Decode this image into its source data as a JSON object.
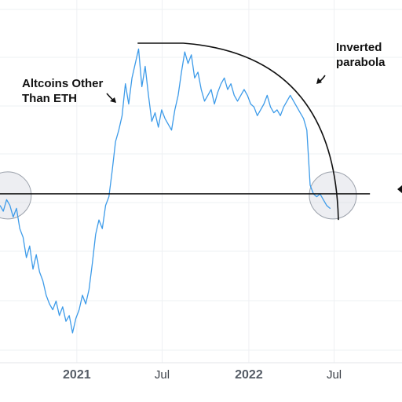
{
  "chart_data": {
    "type": "line",
    "title": "",
    "xlabel": "",
    "ylabel": "",
    "x_ticks": [
      {
        "label": "2021",
        "x": "2021-01-01",
        "style": "year"
      },
      {
        "label": "Jul",
        "x": "2021-07-01",
        "style": "month"
      },
      {
        "label": "2022",
        "x": "2022-01-01",
        "style": "year"
      },
      {
        "label": "Jul",
        "x": "2022-07-01",
        "style": "month"
      }
    ],
    "xlim": [
      "2020-07-22",
      "2022-11-22"
    ],
    "ylim": [
      0,
      100
    ],
    "grid": true,
    "series": [
      {
        "name": "",
        "color": "#3d9be9",
        "points": [
          [
            "2020-07-22",
            44
          ],
          [
            "2020-07-29",
            42
          ],
          [
            "2020-08-05",
            46
          ],
          [
            "2020-08-12",
            44
          ],
          [
            "2020-08-19",
            40
          ],
          [
            "2020-08-26",
            43
          ],
          [
            "2020-09-02",
            36
          ],
          [
            "2020-09-09",
            33
          ],
          [
            "2020-09-16",
            26
          ],
          [
            "2020-09-23",
            30
          ],
          [
            "2020-09-30",
            22
          ],
          [
            "2020-10-07",
            27
          ],
          [
            "2020-10-14",
            21
          ],
          [
            "2020-10-21",
            18
          ],
          [
            "2020-10-28",
            13
          ],
          [
            "2020-11-04",
            10
          ],
          [
            "2020-11-11",
            8
          ],
          [
            "2020-11-18",
            11
          ],
          [
            "2020-11-25",
            6
          ],
          [
            "2020-12-02",
            9
          ],
          [
            "2020-12-09",
            4
          ],
          [
            "2020-12-16",
            6
          ],
          [
            "2020-12-23",
            0
          ],
          [
            "2020-12-30",
            5
          ],
          [
            "2021-01-06",
            8
          ],
          [
            "2021-01-13",
            13
          ],
          [
            "2021-01-20",
            10
          ],
          [
            "2021-01-27",
            15
          ],
          [
            "2021-02-03",
            24
          ],
          [
            "2021-02-10",
            34
          ],
          [
            "2021-02-17",
            39
          ],
          [
            "2021-02-24",
            36
          ],
          [
            "2021-03-03",
            44
          ],
          [
            "2021-03-10",
            47
          ],
          [
            "2021-03-17",
            56
          ],
          [
            "2021-03-24",
            66
          ],
          [
            "2021-03-31",
            70
          ],
          [
            "2021-04-07",
            75
          ],
          [
            "2021-04-14",
            86
          ],
          [
            "2021-04-21",
            79
          ],
          [
            "2021-04-28",
            88
          ],
          [
            "2021-05-05",
            93
          ],
          [
            "2021-05-12",
            98
          ],
          [
            "2021-05-19",
            85
          ],
          [
            "2021-05-26",
            92
          ],
          [
            "2021-06-02",
            82
          ],
          [
            "2021-06-09",
            73
          ],
          [
            "2021-06-16",
            76
          ],
          [
            "2021-06-23",
            71
          ],
          [
            "2021-06-30",
            77
          ],
          [
            "2021-07-07",
            74
          ],
          [
            "2021-07-14",
            72
          ],
          [
            "2021-07-21",
            70
          ],
          [
            "2021-07-28",
            77
          ],
          [
            "2021-08-04",
            82
          ],
          [
            "2021-08-11",
            90
          ],
          [
            "2021-08-18",
            97
          ],
          [
            "2021-08-25",
            93
          ],
          [
            "2021-09-01",
            96
          ],
          [
            "2021-09-08",
            88
          ],
          [
            "2021-09-15",
            90
          ],
          [
            "2021-09-22",
            84
          ],
          [
            "2021-09-29",
            80
          ],
          [
            "2021-10-06",
            82
          ],
          [
            "2021-10-13",
            84
          ],
          [
            "2021-10-20",
            79
          ],
          [
            "2021-10-27",
            83
          ],
          [
            "2021-11-03",
            86
          ],
          [
            "2021-11-10",
            88
          ],
          [
            "2021-11-17",
            84
          ],
          [
            "2021-11-24",
            86
          ],
          [
            "2021-12-01",
            82
          ],
          [
            "2021-12-08",
            80
          ],
          [
            "2021-12-15",
            82
          ],
          [
            "2021-12-22",
            84
          ],
          [
            "2021-12-29",
            82
          ],
          [
            "2022-01-05",
            79
          ],
          [
            "2022-01-12",
            78
          ],
          [
            "2022-01-19",
            75
          ],
          [
            "2022-01-26",
            77
          ],
          [
            "2022-02-02",
            79
          ],
          [
            "2022-02-09",
            82
          ],
          [
            "2022-02-16",
            78
          ],
          [
            "2022-02-23",
            76
          ],
          [
            "2022-03-02",
            77
          ],
          [
            "2022-03-09",
            75
          ],
          [
            "2022-03-16",
            78
          ],
          [
            "2022-03-23",
            80
          ],
          [
            "2022-03-30",
            82
          ],
          [
            "2022-04-06",
            80
          ],
          [
            "2022-04-13",
            78
          ],
          [
            "2022-04-20",
            76
          ],
          [
            "2022-04-27",
            74
          ],
          [
            "2022-05-04",
            70
          ],
          [
            "2022-05-11",
            51
          ],
          [
            "2022-05-18",
            48
          ],
          [
            "2022-05-25",
            47
          ],
          [
            "2022-06-01",
            48
          ],
          [
            "2022-06-08",
            46
          ],
          [
            "2022-06-15",
            44
          ],
          [
            "2022-06-22",
            43
          ],
          [
            "2022-06-23",
            43
          ]
        ]
      }
    ],
    "annotations": [
      {
        "text_lines": [
          "Altcoins Other",
          "Than ETH"
        ],
        "arrow": "curved",
        "near": "series start of rally"
      },
      {
        "text_lines": [
          "Inverted",
          "parabola"
        ],
        "arrow": "curved",
        "near": "parabola curve"
      }
    ],
    "overlays": [
      {
        "type": "horizontal-line",
        "y": 48,
        "x_from": "2020-07-22",
        "x_to": "2022-09-15"
      },
      {
        "type": "inverted-parabola",
        "y_peak": 100,
        "x_flat_start": "2021-05-10",
        "x_flat_end": "2021-08-15",
        "x_end": "2022-07-10",
        "y_end": 39
      },
      {
        "type": "highlight-circle",
        "at": [
          "2020-07-25",
          48
        ]
      },
      {
        "type": "highlight-circle",
        "at": [
          "2022-06-15",
          48
        ]
      }
    ]
  }
}
